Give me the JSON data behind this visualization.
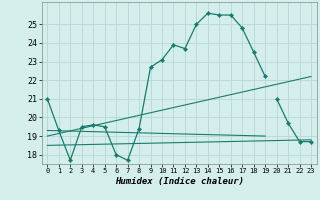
{
  "xlabel": "Humidex (Indice chaleur)",
  "bg_color": "#d4eeec",
  "grid_color": "#b8d8d5",
  "line_color": "#1a7a6e",
  "xlim": [
    -0.5,
    23.5
  ],
  "ylim": [
    17.5,
    26.2
  ],
  "xticks": [
    0,
    1,
    2,
    3,
    4,
    5,
    6,
    7,
    8,
    9,
    10,
    11,
    12,
    13,
    14,
    15,
    16,
    17,
    18,
    19,
    20,
    21,
    22,
    23
  ],
  "yticks": [
    18,
    19,
    20,
    21,
    22,
    23,
    24,
    25
  ],
  "series": [
    {
      "x": [
        0,
        1,
        2,
        3,
        4,
        5,
        6,
        7,
        8,
        9,
        10,
        11,
        12,
        13,
        14,
        15,
        16,
        17,
        18,
        19
      ],
      "y": [
        21.0,
        19.3,
        17.7,
        19.5,
        19.6,
        19.5,
        18.0,
        17.7,
        19.4,
        22.7,
        23.1,
        23.9,
        23.7,
        25.0,
        25.6,
        25.5,
        25.5,
        24.8,
        23.5,
        22.2
      ],
      "has_markers": true
    },
    {
      "x": [
        20,
        21,
        22,
        23
      ],
      "y": [
        21.0,
        19.7,
        18.7,
        18.7
      ],
      "has_markers": true
    },
    {
      "x": [
        0,
        23
      ],
      "y": [
        19.0,
        22.2
      ],
      "has_markers": false
    },
    {
      "x": [
        0,
        23
      ],
      "y": [
        18.5,
        18.8
      ],
      "has_markers": false
    },
    {
      "x": [
        0,
        19
      ],
      "y": [
        19.3,
        19.0
      ],
      "has_markers": false
    }
  ]
}
